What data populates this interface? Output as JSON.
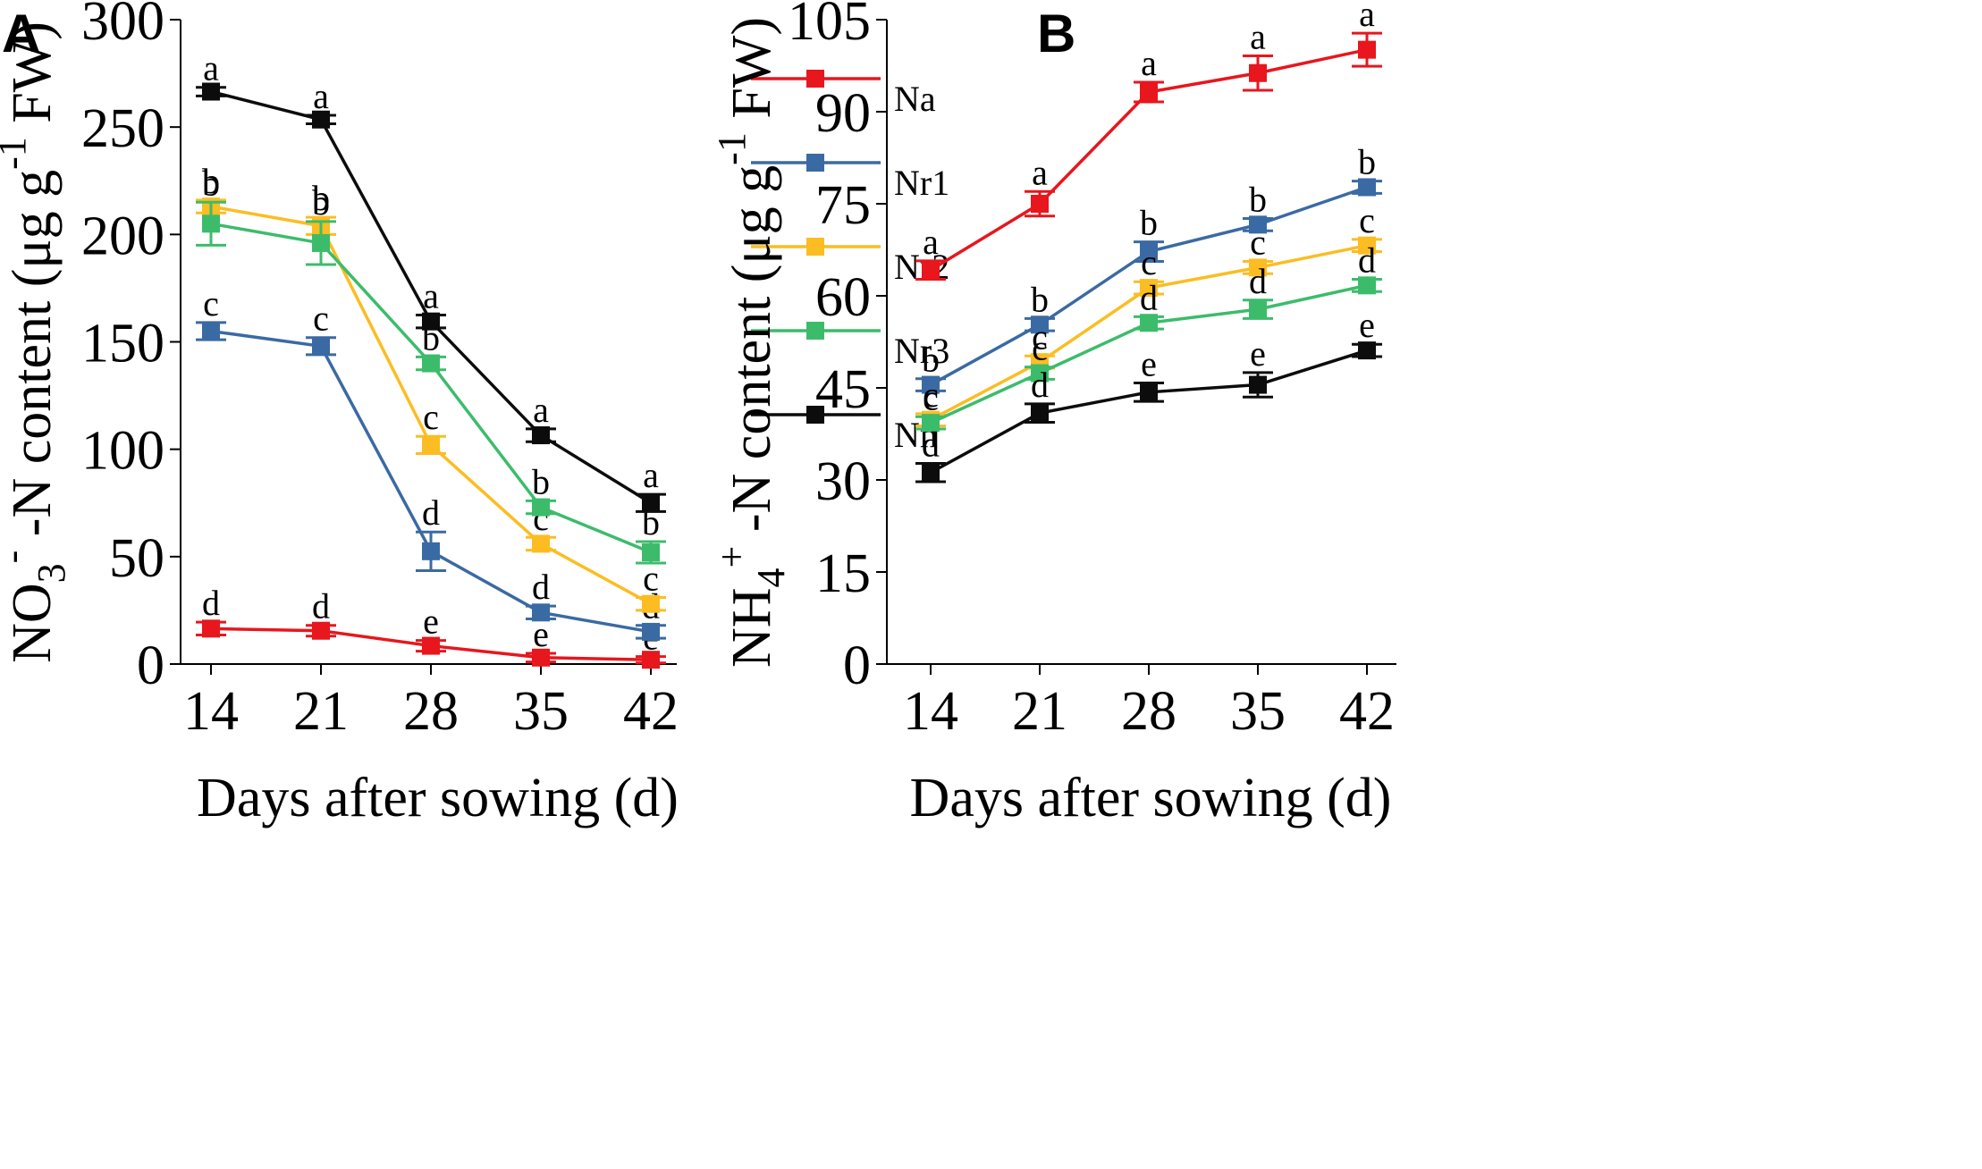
{
  "chart_data": [
    {
      "panel": "A",
      "type": "line",
      "xlabel": "Days after sowing (d)",
      "ylabel": {
        "main": "NO",
        "sub": "3",
        "sup": "-",
        "rest": " -N content (μg g",
        "unit_sup": "-1",
        "tail": " FW)"
      },
      "categories": [
        "14",
        "21",
        "28",
        "35",
        "42"
      ],
      "ylim": [
        0,
        300
      ],
      "yticks": [
        0,
        50,
        100,
        150,
        200,
        250,
        300
      ],
      "series": [
        {
          "name": "Na",
          "color": "#e8161d",
          "values": [
            16.5,
            15.5,
            8.5,
            3,
            2
          ],
          "errors": [
            3,
            2.5,
            2.5,
            2,
            1.5
          ],
          "letters": [
            "d",
            "d",
            "e",
            "e",
            "e"
          ]
        },
        {
          "name": "Nr1",
          "color": "#3a6aa3",
          "values": [
            155,
            148,
            52.5,
            24,
            15
          ],
          "errors": [
            4,
            4,
            9,
            3,
            3
          ],
          "letters": [
            "c",
            "c",
            "d",
            "d",
            "d"
          ]
        },
        {
          "name": "Nr2",
          "color": "#fbbd22",
          "values": [
            213,
            204,
            102,
            56,
            28
          ],
          "errors": [
            3,
            4,
            4,
            3,
            3
          ],
          "letters": [
            "b",
            "b",
            "c",
            "c",
            "c"
          ]
        },
        {
          "name": "Nr3",
          "color": "#3cbc6b",
          "values": [
            205,
            196,
            140,
            73,
            52
          ],
          "errors": [
            10,
            10,
            3,
            3,
            5
          ],
          "letters": [
            "b",
            "b",
            "b",
            "b",
            "b"
          ]
        },
        {
          "name": "Nn",
          "color": "#0c0c0c",
          "values": [
            266.5,
            253.5,
            159.5,
            106.5,
            75
          ],
          "errors": [
            2,
            2,
            3,
            3,
            4
          ],
          "letters": [
            "a",
            "a",
            "a",
            "a",
            "a"
          ]
        }
      ],
      "legend": {
        "placement": "top-right",
        "entries": [
          "Na",
          "Nr1",
          "Nr2",
          "Nr3",
          "Nn"
        ]
      }
    },
    {
      "panel": "B",
      "type": "line",
      "xlabel": "Days after sowing (d)",
      "ylabel": {
        "main": "NH",
        "sub": "4",
        "sup": "+",
        "rest": " -N content (μg g",
        "unit_sup": "-1",
        "tail": " FW)"
      },
      "categories": [
        "14",
        "21",
        "28",
        "35",
        "42"
      ],
      "ylim": [
        0,
        105
      ],
      "yticks": [
        0,
        15,
        30,
        45,
        60,
        75,
        90,
        105
      ],
      "series": [
        {
          "name": "Na",
          "color": "#e8161d",
          "values": [
            64.2,
            75,
            93.2,
            96.3,
            100.1
          ],
          "errors": [
            1.5,
            2,
            1.6,
            2.8,
            2.7
          ],
          "letters": [
            "a",
            "a",
            "a",
            "a",
            "a"
          ]
        },
        {
          "name": "Nr1",
          "color": "#3a6aa3",
          "values": [
            45.5,
            55.3,
            67.2,
            71.6,
            77.7
          ],
          "errors": [
            1,
            1,
            1.6,
            1,
            1
          ],
          "letters": [
            "b",
            "b",
            "b",
            "b",
            "b"
          ]
        },
        {
          "name": "Nr2",
          "color": "#fbbd22",
          "values": [
            39.8,
            49.2,
            61.3,
            64.6,
            68.2
          ],
          "errors": [
            1,
            1,
            1,
            1,
            1
          ],
          "letters": [
            "c",
            "c",
            "c",
            "c",
            "c"
          ]
        },
        {
          "name": "Nr3",
          "color": "#3cbc6b",
          "values": [
            39.3,
            47.4,
            55.6,
            57.8,
            61.7
          ],
          "errors": [
            1,
            1,
            1,
            1.5,
            1
          ],
          "letters": [
            "c",
            "c",
            "d",
            "d",
            "d"
          ]
        },
        {
          "name": "Nn",
          "color": "#0c0c0c",
          "values": [
            31.2,
            40.9,
            44.3,
            45.5,
            51.1
          ],
          "errors": [
            1.5,
            1.5,
            1.5,
            2,
            1
          ],
          "letters": [
            "d",
            "d",
            "e",
            "e",
            "e"
          ]
        }
      ]
    }
  ]
}
